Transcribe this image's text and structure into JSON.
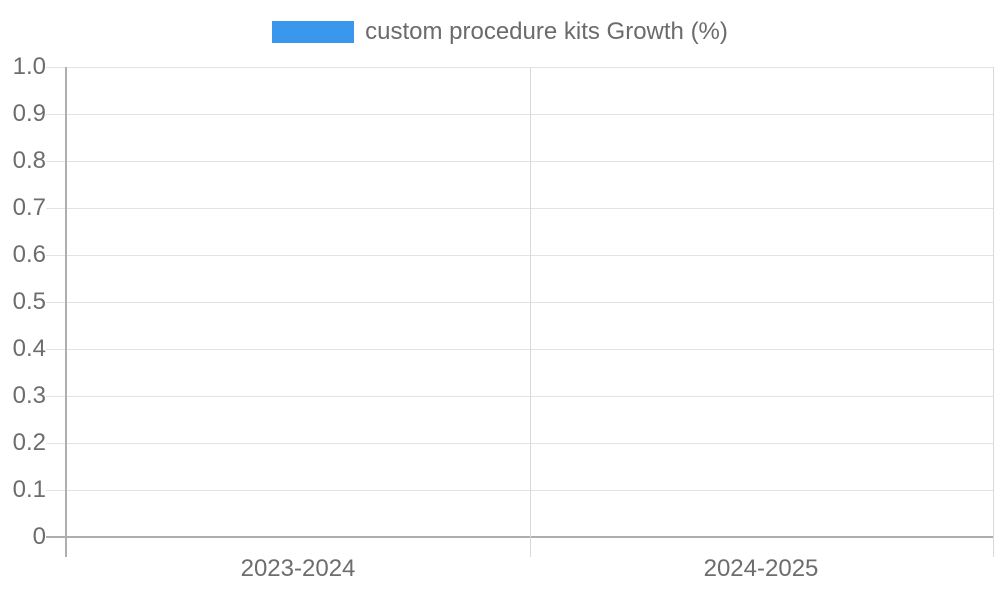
{
  "legend": {
    "label": "custom procedure kits Growth (%)",
    "swatch_color": "#3b97ed"
  },
  "chart_data": {
    "type": "bar",
    "title": "custom procedure kits Growth (%)",
    "categories": [
      "2023-2024",
      "2024-2025"
    ],
    "series": [
      {
        "name": "custom procedure kits Growth (%)",
        "color": "#3b97ed",
        "values": [
          0,
          0
        ]
      }
    ],
    "xlabel": "",
    "ylabel": "",
    "ylim": [
      0,
      1.0
    ],
    "yticks": [
      {
        "value": 1.0,
        "label": "1.0"
      },
      {
        "value": 0.9,
        "label": "0.9"
      },
      {
        "value": 0.8,
        "label": "0.8"
      },
      {
        "value": 0.7,
        "label": "0.7"
      },
      {
        "value": 0.6,
        "label": "0.6"
      },
      {
        "value": 0.5,
        "label": "0.5"
      },
      {
        "value": 0.4,
        "label": "0.4"
      },
      {
        "value": 0.3,
        "label": "0.3"
      },
      {
        "value": 0.2,
        "label": "0.2"
      },
      {
        "value": 0.1,
        "label": "0.1"
      },
      {
        "value": 0.0,
        "label": "0"
      }
    ],
    "grid": true,
    "legend_position": "top-center"
  },
  "colors": {
    "bar": "#3b97ed",
    "background": "#ffffff",
    "horizontal_gridline": "#e3e3e3",
    "vertical_gridline": "#d9d9d9",
    "axis": "#aeaeae",
    "tick_label_text": "#6d6d6d",
    "legend_text": "#6b6b6b"
  }
}
